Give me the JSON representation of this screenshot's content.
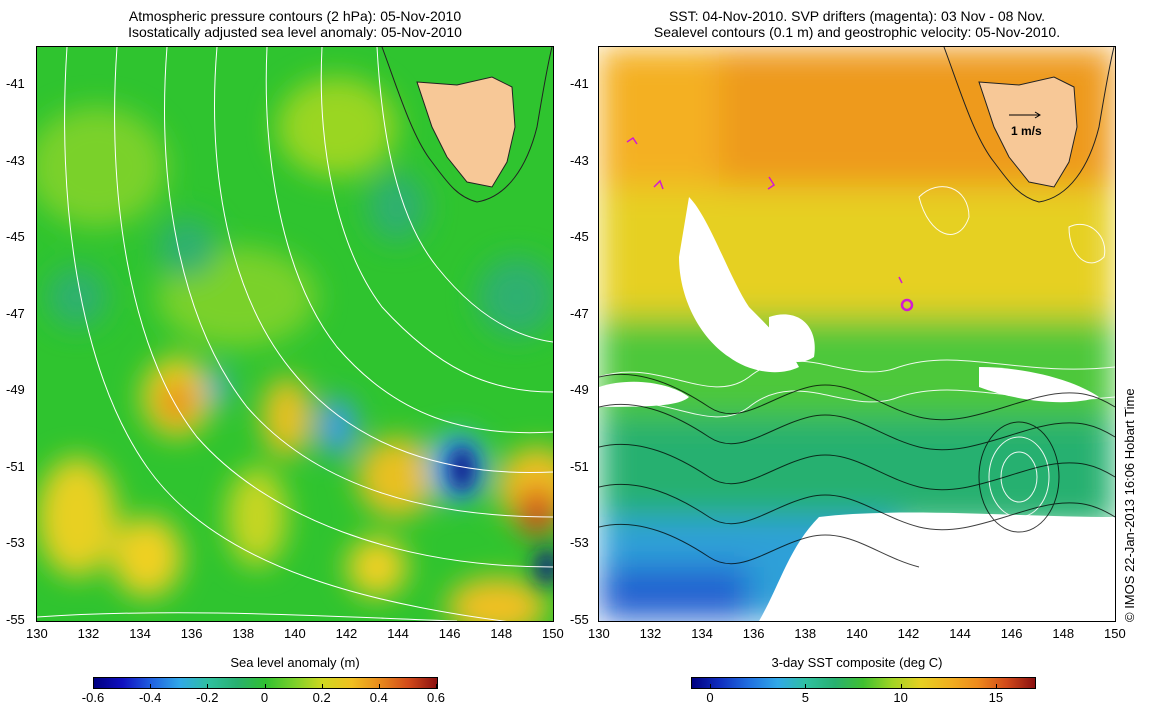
{
  "left_panel": {
    "title_line1": "Atmospheric pressure contours (2 hPa): 05-Nov-2010",
    "title_line2": "Isostatically adjusted sea level anomaly: 05-Nov-2010",
    "colorbar": {
      "label": "Sea level anomaly (m)",
      "ticks": [
        "-0.6",
        "-0.4",
        "-0.2",
        "0",
        "0.2",
        "0.4",
        "0.6"
      ],
      "range": [
        -0.6,
        0.6
      ]
    }
  },
  "right_panel": {
    "title_line1": "SST: 04-Nov-2010. SVP drifters (magenta): 03 Nov - 08 Nov.",
    "title_line2": "Sealevel contours (0.1 m) and geostrophic velocity: 05-Nov-2010.",
    "velocity_scale_label": "1 m/s",
    "colorbar": {
      "label": "3-day SST composite (deg C)",
      "ticks": [
        "0",
        "5",
        "10",
        "15"
      ],
      "range": [
        -1,
        17
      ]
    }
  },
  "axes": {
    "lon_ticks": [
      "130",
      "132",
      "134",
      "136",
      "138",
      "140",
      "142",
      "144",
      "146",
      "148",
      "150"
    ],
    "lat_ticks": [
      "-41",
      "-43",
      "-45",
      "-47",
      "-49",
      "-51",
      "-53",
      "-55"
    ]
  },
  "copyright": "© IMOS 22-Jan-2013 16:06 Hobart Time",
  "colors": {
    "land": "#f7c897",
    "drifter": "#d21ad2",
    "contour": "#ffffff"
  }
}
